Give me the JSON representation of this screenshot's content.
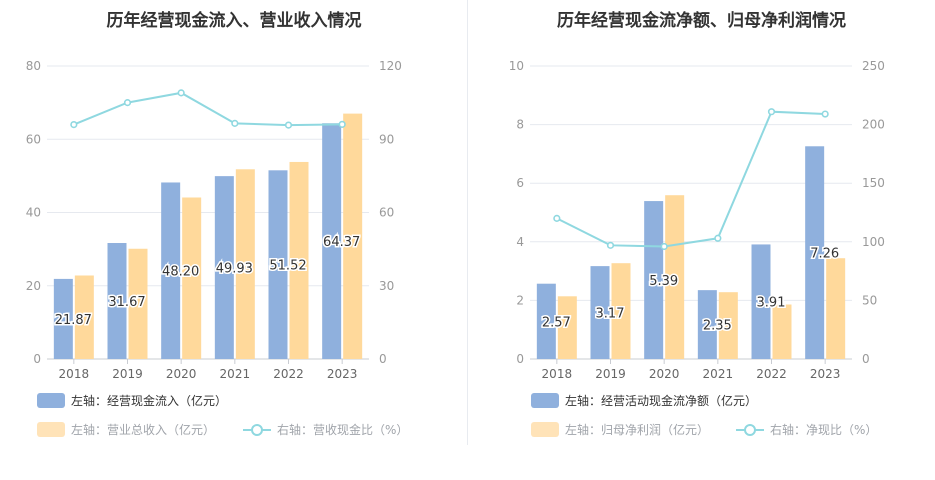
{
  "chart_data": [
    {
      "type": "bar",
      "title": "历年经营现金流入、营业收入情况",
      "categories": [
        "2018",
        "2019",
        "2020",
        "2021",
        "2022",
        "2023"
      ],
      "left_axis": {
        "ylim": [
          0,
          80
        ],
        "ticks": [
          "0",
          "20",
          "40",
          "60",
          "80"
        ]
      },
      "right_axis": {
        "ylim": [
          0,
          120
        ],
        "ticks": [
          "0",
          "30",
          "60",
          "90",
          "120"
        ]
      },
      "series": [
        {
          "name": "左轴：经营现金流入（亿元）",
          "axis": "left",
          "type": "bar",
          "color": "#8fb0dd",
          "values": [
            21.87,
            31.67,
            48.2,
            49.93,
            51.52,
            64.37
          ],
          "labels": [
            "21.87",
            "31.67",
            "48.20",
            "49.93",
            "51.52",
            "64.37"
          ]
        },
        {
          "name": "左轴：营业总收入（亿元）",
          "axis": "left",
          "type": "bar",
          "color": "#ffd99b",
          "values": [
            22.8,
            30.1,
            44.1,
            51.8,
            53.8,
            67.0
          ]
        },
        {
          "name": "右轴：营收现金比（%）",
          "axis": "right",
          "type": "line",
          "color": "#8fd8e0",
          "values": [
            96,
            105,
            109,
            96.5,
            95.8,
            96.1
          ]
        }
      ],
      "grid": true
    },
    {
      "type": "bar",
      "title": "历年经营现金流净额、归母净利润情况",
      "categories": [
        "2018",
        "2019",
        "2020",
        "2021",
        "2022",
        "2023"
      ],
      "left_axis": {
        "ylim": [
          0,
          10
        ],
        "ticks": [
          "0",
          "2",
          "4",
          "6",
          "8",
          "10"
        ]
      },
      "right_axis": {
        "ylim": [
          0,
          250
        ],
        "ticks": [
          "0",
          "50",
          "100",
          "150",
          "200",
          "250"
        ]
      },
      "series": [
        {
          "name": "左轴：经营活动现金流净额（亿元）",
          "axis": "left",
          "type": "bar",
          "color": "#8fb0dd",
          "values": [
            2.57,
            3.17,
            5.39,
            2.35,
            3.91,
            7.26
          ],
          "labels": [
            "2.57",
            "3.17",
            "5.39",
            "2.35",
            "3.91",
            "7.26"
          ]
        },
        {
          "name": "左轴：归母净利润（亿元）",
          "axis": "left",
          "type": "bar",
          "color": "#ffd99b",
          "values": [
            2.14,
            3.27,
            5.59,
            2.28,
            1.86,
            3.44
          ]
        },
        {
          "name": "右轴：净现比（%）",
          "axis": "right",
          "type": "line",
          "color": "#8fd8e0",
          "values": [
            120,
            97,
            96,
            103,
            211,
            209
          ]
        }
      ],
      "grid": true
    }
  ]
}
